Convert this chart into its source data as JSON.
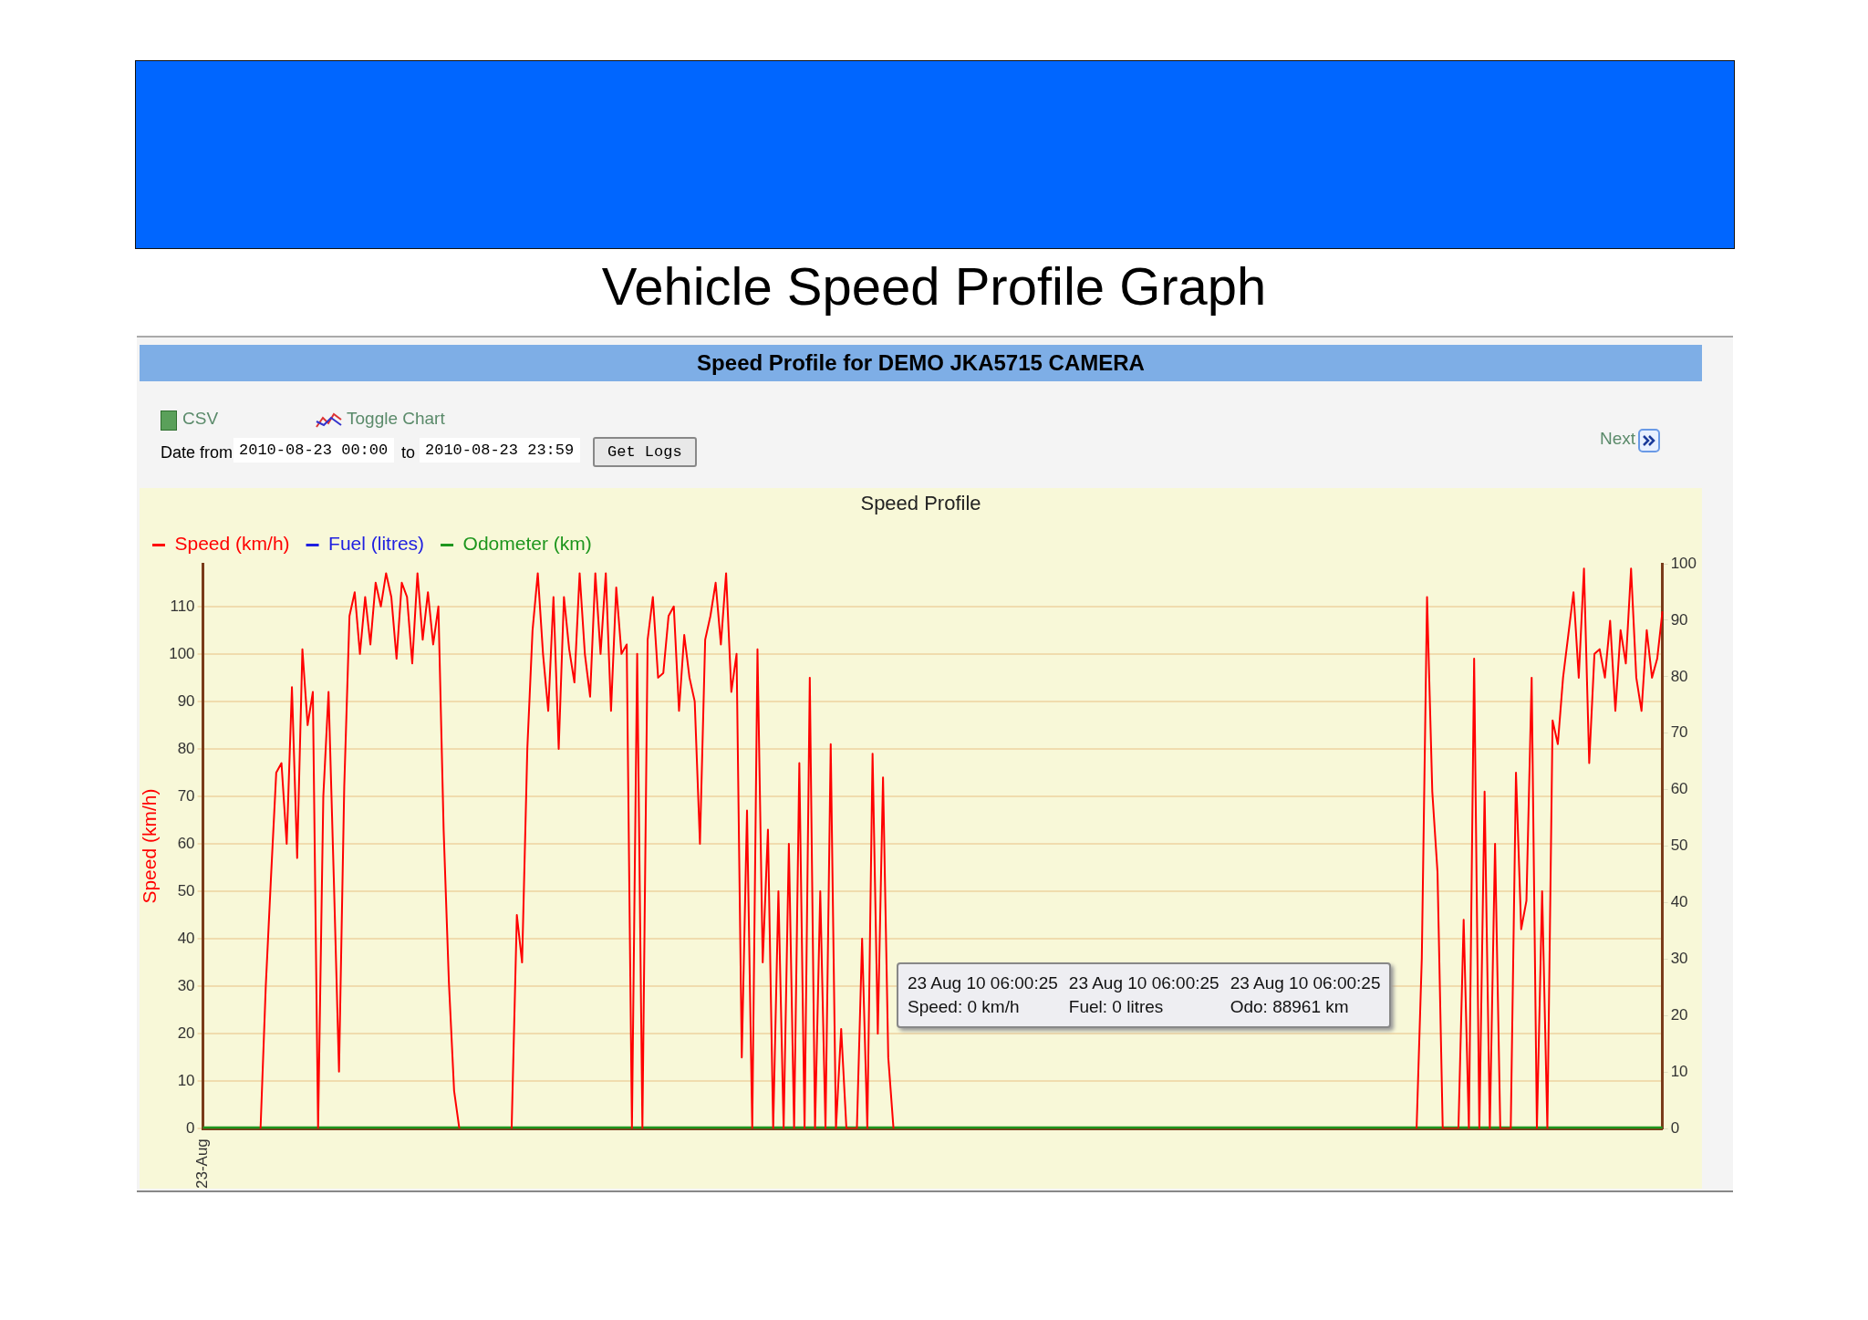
{
  "chart_data": {
    "type": "line",
    "title": "Vehicle Speed Profile Graph",
    "subtitle": "Speed Profile for DEMO JKA5715 CAMERA",
    "ylabel": "Speed (km/h)",
    "annotations": [
      "Speed Profile",
      "CSV",
      "Toggle Chart",
      "Date from",
      "2010-08-23 00:00",
      "to",
      "2010-08-23 23:59",
      "Get Logs",
      "Next",
      "23 Aug 10 06:00:25",
      "Speed: 0 km/h",
      "23 Aug 10 06:00:25",
      "Fuel: 0 litres",
      "23 Aug 10 06:00:25",
      "Odo: 88961 km"
    ],
    "categories": [
      "23-Aug",
      null,
      null,
      null,
      null,
      null,
      null,
      null,
      null,
      null,
      null,
      null,
      null,
      null,
      null,
      null,
      null,
      null,
      null,
      null,
      null,
      null,
      null,
      null,
      null,
      null,
      null,
      null,
      null,
      null,
      null,
      null,
      null,
      null,
      null,
      null,
      null,
      null,
      null,
      null,
      null,
      null,
      null,
      null,
      null,
      null,
      null,
      null,
      null,
      null,
      null,
      null,
      null,
      null,
      null,
      null,
      null,
      null,
      null,
      null,
      null,
      null,
      null,
      null,
      null,
      null,
      null,
      null,
      null,
      null,
      null,
      null,
      null,
      null,
      null,
      null,
      null,
      null,
      null,
      null,
      null,
      null,
      null,
      null,
      null,
      null,
      null,
      null,
      null,
      null,
      null,
      null,
      null,
      null,
      null,
      null,
      null,
      null,
      null,
      null,
      null,
      null,
      null,
      null,
      null,
      null,
      null,
      null,
      null,
      null,
      null,
      null,
      null,
      null,
      null,
      null,
      null,
      null,
      null,
      null,
      null,
      null,
      null,
      null,
      null,
      null,
      null,
      null,
      null,
      null,
      null,
      null,
      null,
      null,
      null,
      null,
      null,
      null,
      null,
      null,
      null,
      null,
      null,
      null,
      null,
      null,
      null,
      null,
      null,
      null,
      null,
      null,
      null,
      null,
      null,
      null,
      null,
      null,
      null,
      null,
      null,
      null,
      null,
      null,
      null,
      null,
      null,
      null,
      null,
      null,
      null,
      null,
      null,
      null,
      null,
      null,
      null,
      null,
      null,
      null,
      null,
      null,
      null,
      null,
      null,
      null,
      null,
      null,
      null,
      null,
      null,
      null,
      null,
      null,
      null,
      null,
      null,
      null,
      null,
      null,
      null,
      null,
      null,
      null,
      null,
      null,
      null,
      null,
      null,
      null,
      null,
      null,
      null,
      null,
      null,
      null,
      null,
      null,
      null,
      null,
      null,
      null,
      null,
      null,
      null,
      null,
      null,
      null,
      null,
      null,
      null,
      null,
      null,
      null,
      null,
      null,
      null,
      null,
      null,
      null,
      null,
      null,
      null,
      null,
      null,
      null,
      null,
      null,
      null,
      null,
      null,
      null,
      null,
      null,
      null,
      null,
      null,
      null,
      null,
      null,
      null,
      null,
      null,
      null,
      null,
      null,
      null,
      null,
      null,
      null,
      null,
      null,
      null,
      null,
      null,
      null,
      null,
      null,
      null,
      null
    ],
    "series": [
      {
        "name": "Speed (km/h)",
        "color": "#ff0000",
        "values": [
          null,
          null,
          null,
          null,
          null,
          null,
          null,
          null,
          null,
          null,
          null,
          0,
          30,
          53,
          75,
          77,
          60,
          93,
          57,
          101,
          85,
          92,
          0,
          70,
          92,
          53,
          12,
          72,
          108,
          113,
          100,
          112,
          102,
          115,
          110,
          117,
          112,
          99,
          115,
          112,
          98,
          117,
          103,
          113,
          102,
          110,
          63,
          31,
          8,
          0,
          null,
          null,
          null,
          null,
          null,
          null,
          null,
          null,
          null,
          0,
          45,
          35,
          80,
          105,
          117,
          100,
          88,
          112,
          80,
          112,
          101,
          94,
          117,
          100,
          91,
          117,
          100,
          117,
          88,
          114,
          100,
          102,
          0,
          100,
          0,
          103,
          112,
          95,
          96,
          108,
          110,
          88,
          104,
          95,
          90,
          60,
          103,
          108,
          115,
          102,
          117,
          92,
          100,
          15,
          67,
          0,
          101,
          35,
          63,
          0,
          50,
          0,
          60,
          0,
          77,
          0,
          95,
          0,
          50,
          0,
          81,
          0,
          21,
          0,
          0,
          0,
          40,
          0,
          79,
          20,
          74,
          15,
          0,
          null,
          null,
          null,
          null,
          null,
          null,
          null,
          null,
          null,
          null,
          null,
          null,
          null,
          null,
          null,
          null,
          null,
          null,
          null,
          null,
          null,
          null,
          null,
          null,
          null,
          null,
          null,
          null,
          null,
          null,
          null,
          null,
          null,
          null,
          null,
          null,
          null,
          null,
          null,
          null,
          null,
          null,
          null,
          null,
          null,
          null,
          null,
          null,
          null,
          null,
          null,
          null,
          null,
          null,
          null,
          null,
          null,
          null,
          null,
          null,
          null,
          null,
          null,
          null,
          null,
          null,
          null,
          null,
          null,
          null,
          null,
          null,
          null,
          null,
          null,
          null,
          null,
          null,
          null,
          null,
          null,
          null,
          null,
          null,
          null,
          null,
          null,
          null,
          null,
          null,
          null,
          null,
          null,
          null,
          null,
          null,
          null,
          null,
          null,
          0,
          36,
          112,
          71,
          54,
          0,
          0,
          0,
          0,
          44,
          0,
          99,
          0,
          71,
          0,
          60,
          0,
          0,
          0,
          75,
          42,
          48,
          95,
          0,
          50,
          0,
          86,
          81,
          95,
          104,
          113,
          95,
          118,
          77,
          100,
          101,
          95,
          107,
          88,
          105,
          98,
          118,
          95,
          88,
          105,
          95,
          99,
          109
        ]
      },
      {
        "name": "Fuel (litres)",
        "color": "#1f1fe0",
        "values": [
          null,
          null,
          null,
          null,
          null,
          null,
          null,
          null,
          null,
          null,
          null,
          null,
          null,
          null,
          null,
          null,
          null,
          null,
          null,
          null,
          null,
          null,
          null,
          null,
          null,
          null,
          null,
          null,
          null,
          null,
          null,
          null,
          null,
          null,
          null,
          null,
          null,
          null,
          null,
          null,
          null,
          null,
          null,
          null,
          null,
          null,
          null,
          null,
          null,
          null,
          null,
          null,
          null,
          null,
          null,
          null,
          null,
          null,
          null,
          null,
          null,
          null,
          null,
          null,
          null,
          null,
          null,
          null,
          null,
          null,
          null,
          null,
          null,
          null,
          null,
          null,
          null,
          null,
          null,
          null,
          null,
          null,
          null,
          null,
          null,
          null,
          null,
          null,
          null,
          null,
          null,
          null,
          null,
          null,
          null,
          null,
          null,
          null,
          null,
          null,
          null,
          null,
          null,
          null,
          null,
          null,
          null,
          null,
          null,
          null,
          null,
          null,
          null,
          null,
          null,
          null,
          null,
          null,
          null,
          null,
          null,
          null,
          null,
          null,
          null,
          null,
          null,
          null,
          null,
          null,
          null,
          null,
          null,
          null,
          null,
          null,
          null,
          null,
          null,
          null,
          null,
          null,
          null,
          null,
          null,
          null,
          null,
          null,
          null,
          null,
          null,
          null,
          null,
          null,
          null,
          null,
          null,
          null,
          null,
          null,
          null,
          null,
          null,
          null,
          null,
          null,
          null,
          null,
          null,
          null,
          null,
          null,
          null,
          null,
          null,
          null,
          null,
          null,
          null,
          null,
          null,
          null,
          null,
          null,
          null,
          null,
          null,
          null,
          null,
          null,
          null,
          null,
          null,
          null,
          null,
          null,
          null,
          null,
          null,
          null,
          null,
          null,
          null,
          null,
          null,
          null,
          null,
          null,
          null,
          null,
          null,
          null,
          null,
          null,
          null,
          null,
          null,
          null,
          null,
          null,
          null,
          null,
          null,
          null,
          null,
          null,
          null,
          null,
          null,
          null,
          null,
          null,
          null,
          null,
          null,
          null,
          null,
          null,
          null,
          null,
          null,
          null,
          null,
          null,
          null,
          null,
          null,
          null,
          null,
          null,
          null,
          null,
          null,
          null,
          null,
          null,
          null,
          null,
          null,
          null,
          null,
          null,
          null,
          null,
          null,
          null,
          null,
          null,
          null,
          null,
          null,
          null,
          null,
          null,
          null,
          null,
          null,
          null,
          null,
          null
        ]
      },
      {
        "name": "Odometer (km)",
        "color": "#1e961e",
        "values": [
          0,
          0,
          0,
          0,
          0,
          0,
          0,
          0,
          0,
          0,
          0,
          0,
          0,
          0,
          0,
          0,
          0,
          0,
          0,
          0,
          0,
          0,
          0,
          0,
          0,
          0,
          0,
          0,
          0,
          0,
          0,
          0,
          0,
          0,
          0,
          0,
          0,
          0,
          0,
          0,
          0,
          0,
          0,
          0,
          0,
          0,
          0,
          0,
          0,
          0,
          0,
          0,
          0,
          0,
          0,
          0,
          0,
          0,
          0,
          0,
          0,
          0,
          0,
          0,
          0,
          0,
          0,
          0,
          0,
          0,
          0,
          0,
          0,
          0,
          0,
          0,
          0,
          0,
          0,
          0,
          0,
          0,
          0,
          0,
          0,
          0,
          0,
          0,
          0,
          0,
          0,
          0,
          0,
          0,
          0,
          0,
          0,
          0,
          0,
          0,
          0,
          0,
          0,
          0,
          0,
          0,
          0,
          0,
          0,
          0,
          0,
          0,
          0,
          0,
          0,
          0,
          0,
          0,
          0,
          0,
          0,
          0,
          0,
          0,
          0,
          0,
          0,
          0,
          0,
          0,
          0,
          0,
          0,
          0,
          0,
          0,
          0,
          0,
          0,
          0,
          0,
          0,
          0,
          0,
          0,
          0,
          0,
          0,
          0,
          0,
          0,
          0,
          0,
          0,
          0,
          0,
          0,
          0,
          0,
          0,
          0,
          0,
          0,
          0,
          0,
          0,
          0,
          0,
          0,
          0,
          0,
          0,
          0,
          0,
          0,
          0,
          0,
          0,
          0,
          0,
          0,
          0,
          0,
          0,
          0,
          0,
          0,
          0,
          0,
          0,
          0,
          0,
          0,
          0,
          0,
          0,
          0,
          0,
          0,
          0,
          0,
          0,
          0,
          0,
          0,
          0,
          0,
          0,
          0,
          0,
          0,
          0,
          0,
          0,
          0,
          0,
          0,
          0,
          0,
          0,
          0,
          0,
          0,
          0,
          0,
          0,
          0,
          0,
          0,
          0,
          0,
          0,
          0,
          0,
          0,
          0,
          0,
          0,
          0,
          0,
          0,
          0,
          0,
          0,
          0,
          0,
          0,
          0,
          0,
          0,
          0,
          0,
          0,
          0,
          0,
          0,
          0,
          0,
          0,
          0,
          0,
          0,
          0,
          0,
          0,
          0,
          0,
          0,
          0,
          0,
          0,
          0,
          0,
          0,
          0,
          0,
          0,
          0,
          0,
          0
        ]
      }
    ],
    "ylim": [
      0,
      119
    ],
    "yticks": [
      0,
      10,
      20,
      30,
      40,
      50,
      60,
      70,
      80,
      90,
      100,
      110
    ],
    "y2lim": [
      0,
      100
    ],
    "y2ticks": [
      0,
      10,
      20,
      30,
      40,
      50,
      60,
      70,
      80,
      90,
      100
    ],
    "grid": "y",
    "legend": "top left",
    "marker": "none",
    "line_style": "solid"
  }
}
